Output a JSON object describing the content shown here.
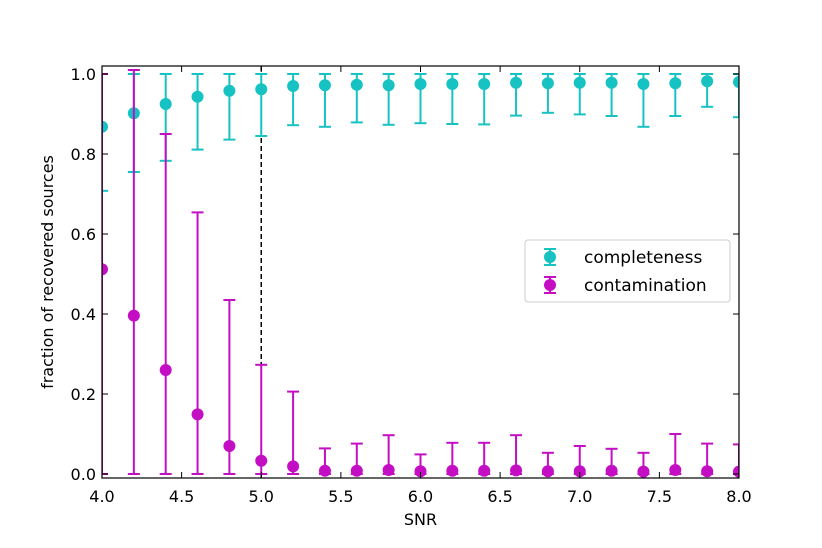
{
  "chart_data": {
    "type": "scatter",
    "title": "",
    "xlabel": "SNR",
    "ylabel": "fraction of recovered sources",
    "xlim": [
      4.0,
      8.0
    ],
    "ylim": [
      -0.01,
      1.02
    ],
    "xticks": [
      "4.0",
      "4.5",
      "5.0",
      "5.5",
      "6.0",
      "6.5",
      "7.0",
      "7.5",
      "8.0"
    ],
    "yticks": [
      "0.0",
      "0.2",
      "0.4",
      "0.6",
      "0.8",
      "1.0"
    ],
    "vline": 5.0,
    "legend_position": "center-right",
    "x": [
      4.0,
      4.2,
      4.4,
      4.6,
      4.8,
      5.0,
      5.2,
      5.4,
      5.6,
      5.8,
      6.0,
      6.2,
      6.4,
      6.6,
      6.8,
      7.0,
      7.2,
      7.4,
      7.6,
      7.8,
      8.0
    ],
    "series": [
      {
        "name": "completeness",
        "color": "#17c2c2",
        "values": [
          0.868,
          0.902,
          0.925,
          0.943,
          0.958,
          0.962,
          0.97,
          0.972,
          0.973,
          0.972,
          0.975,
          0.975,
          0.975,
          0.978,
          0.977,
          0.978,
          0.978,
          0.975,
          0.977,
          0.982,
          0.98
        ],
        "err_low": [
          0.708,
          0.755,
          0.783,
          0.811,
          0.836,
          0.845,
          0.872,
          0.868,
          0.879,
          0.873,
          0.877,
          0.875,
          0.874,
          0.896,
          0.903,
          0.899,
          0.895,
          0.868,
          0.895,
          0.918,
          0.892
        ],
        "err_high": [
          1.0,
          1.0,
          1.0,
          1.0,
          1.0,
          1.0,
          1.0,
          1.0,
          1.0,
          1.0,
          1.0,
          1.0,
          1.0,
          1.0,
          1.0,
          1.0,
          1.0,
          1.0,
          1.0,
          1.0,
          1.0
        ]
      },
      {
        "name": "contamination",
        "color": "#c40ec4",
        "values": [
          0.512,
          0.396,
          0.26,
          0.149,
          0.07,
          0.033,
          0.019,
          0.008,
          0.008,
          0.01,
          0.007,
          0.008,
          0.008,
          0.009,
          0.007,
          0.007,
          0.008,
          0.006,
          0.01,
          0.007,
          0.006
        ],
        "err_low": [
          0.0,
          0.0,
          0.0,
          0.0,
          0.0,
          0.0,
          0.0,
          0.0,
          0.0,
          0.0,
          0.0,
          0.0,
          0.0,
          0.0,
          0.0,
          0.0,
          0.0,
          0.0,
          0.0,
          0.0,
          0.0
        ],
        "err_high": [
          1.0,
          1.01,
          0.85,
          0.654,
          0.435,
          0.273,
          0.206,
          0.064,
          0.076,
          0.097,
          0.049,
          0.078,
          0.078,
          0.097,
          0.053,
          0.07,
          0.063,
          0.053,
          0.1,
          0.076,
          0.074
        ]
      }
    ]
  }
}
